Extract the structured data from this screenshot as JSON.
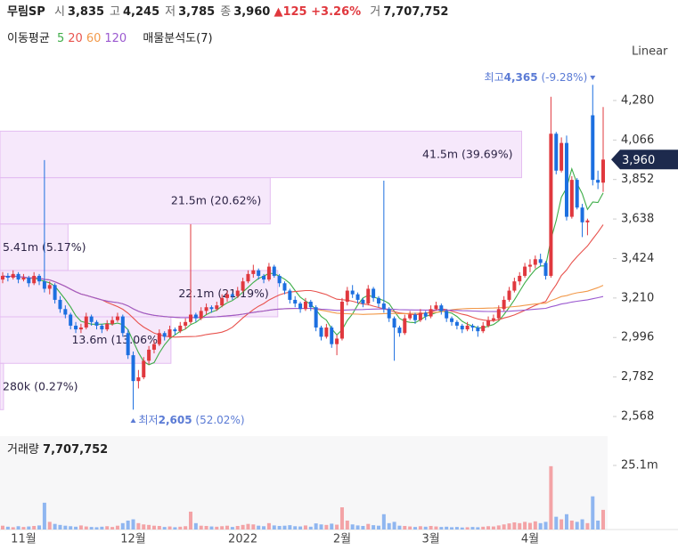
{
  "header": {
    "name": "무림SP",
    "stats": [
      {
        "label": "시",
        "value": "3,835"
      },
      {
        "label": "고",
        "value": "4,245"
      },
      {
        "label": "저",
        "value": "3,785"
      },
      {
        "label": "종",
        "value": "3,960"
      }
    ],
    "change": "125",
    "change_pct": "+3.26%",
    "volume_label": "거",
    "volume": "7,707,752"
  },
  "legend": {
    "title": "이동평균",
    "analysis": "매물분석도(7)"
  },
  "scale_mode": "Linear",
  "chart_data": {
    "type": "candlestick",
    "up_color": "#e0383e",
    "down_color": "#1c6fe0",
    "categories": [
      null,
      null,
      null,
      null,
      "11월",
      null,
      null,
      null,
      null,
      null,
      null,
      null,
      null,
      null,
      null,
      null,
      null,
      null,
      null,
      null,
      null,
      null,
      null,
      null,
      null,
      "12월",
      null,
      null,
      null,
      null,
      null,
      null,
      null,
      null,
      null,
      null,
      null,
      null,
      null,
      null,
      null,
      null,
      null,
      null,
      null,
      null,
      "2022",
      null,
      null,
      null,
      null,
      null,
      null,
      null,
      null,
      null,
      null,
      null,
      null,
      null,
      null,
      null,
      null,
      null,
      null,
      "2월",
      null,
      null,
      null,
      null,
      null,
      null,
      null,
      null,
      null,
      null,
      null,
      null,
      null,
      null,
      null,
      null,
      "3월",
      null,
      null,
      null,
      null,
      null,
      null,
      null,
      null,
      null,
      null,
      null,
      null,
      null,
      null,
      null,
      null,
      null,
      null,
      "4월",
      null,
      null,
      null,
      null,
      null,
      null,
      null,
      null,
      null,
      null,
      null,
      null,
      null
    ],
    "ohlc": [
      [
        3310,
        3350,
        3290,
        3330
      ],
      [
        3330,
        3345,
        3300,
        3320
      ],
      [
        3320,
        3360,
        3310,
        3340
      ],
      [
        3340,
        3350,
        3290,
        3310
      ],
      [
        3310,
        3340,
        3300,
        3320
      ],
      [
        3320,
        3330,
        3270,
        3290
      ],
      [
        3290,
        3350,
        3280,
        3330
      ],
      [
        3330,
        3340,
        3280,
        3300
      ],
      [
        3300,
        3957,
        3240,
        3260
      ],
      [
        3260,
        3300,
        3230,
        3280
      ],
      [
        3280,
        3290,
        3180,
        3200
      ],
      [
        3200,
        3220,
        3130,
        3150
      ],
      [
        3150,
        3170,
        3100,
        3120
      ],
      [
        3120,
        3130,
        3040,
        3060
      ],
      [
        3060,
        3080,
        3020,
        3040
      ],
      [
        3040,
        3070,
        3020,
        3050
      ],
      [
        3050,
        3130,
        3040,
        3110
      ],
      [
        3110,
        3120,
        3060,
        3080
      ],
      [
        3080,
        3090,
        3040,
        3060
      ],
      [
        3060,
        3070,
        3020,
        3040
      ],
      [
        3040,
        3090,
        3030,
        3070
      ],
      [
        3070,
        3110,
        3060,
        3090
      ],
      [
        3090,
        3130,
        3080,
        3110
      ],
      [
        3110,
        3120,
        3000,
        3020
      ],
      [
        3020,
        3040,
        2880,
        2900
      ],
      [
        2900,
        2920,
        2605,
        2760
      ],
      [
        2760,
        2820,
        2720,
        2780
      ],
      [
        2780,
        2890,
        2770,
        2870
      ],
      [
        2870,
        2950,
        2850,
        2930
      ],
      [
        2930,
        2980,
        2910,
        2960
      ],
      [
        2960,
        3040,
        2950,
        3020
      ],
      [
        3020,
        3030,
        2980,
        3000
      ],
      [
        3000,
        3060,
        2990,
        3040
      ],
      [
        3040,
        3050,
        3010,
        3030
      ],
      [
        3030,
        3080,
        3020,
        3060
      ],
      [
        3060,
        3100,
        3040,
        3080
      ],
      [
        3080,
        3610,
        3070,
        3120
      ],
      [
        3120,
        3130,
        3080,
        3100
      ],
      [
        3100,
        3160,
        3090,
        3140
      ],
      [
        3140,
        3180,
        3120,
        3160
      ],
      [
        3160,
        3170,
        3130,
        3150
      ],
      [
        3150,
        3190,
        3140,
        3170
      ],
      [
        3170,
        3230,
        3160,
        3210
      ],
      [
        3210,
        3250,
        3190,
        3230
      ],
      [
        3230,
        3240,
        3200,
        3220
      ],
      [
        3220,
        3270,
        3210,
        3250
      ],
      [
        3250,
        3320,
        3240,
        3300
      ],
      [
        3300,
        3360,
        3290,
        3340
      ],
      [
        3340,
        3390,
        3320,
        3360
      ],
      [
        3360,
        3370,
        3310,
        3330
      ],
      [
        3330,
        3340,
        3290,
        3310
      ],
      [
        3310,
        3400,
        3300,
        3380
      ],
      [
        3380,
        3390,
        3320,
        3330
      ],
      [
        3330,
        3340,
        3270,
        3290
      ],
      [
        3290,
        3300,
        3230,
        3250
      ],
      [
        3250,
        3260,
        3180,
        3200
      ],
      [
        3200,
        3220,
        3160,
        3180
      ],
      [
        3180,
        3190,
        3130,
        3150
      ],
      [
        3150,
        3210,
        3140,
        3190
      ],
      [
        3190,
        3200,
        3140,
        3160
      ],
      [
        3160,
        3170,
        3030,
        3050
      ],
      [
        3050,
        3060,
        2980,
        3000
      ],
      [
        3000,
        3070,
        2990,
        3050
      ],
      [
        3050,
        3060,
        2940,
        2960
      ],
      [
        2960,
        3010,
        2900,
        2990
      ],
      [
        2990,
        3210,
        2980,
        3190
      ],
      [
        3190,
        3270,
        3170,
        3250
      ],
      [
        3250,
        3280,
        3210,
        3230
      ],
      [
        3230,
        3240,
        3180,
        3200
      ],
      [
        3200,
        3210,
        3160,
        3180
      ],
      [
        3180,
        3280,
        3170,
        3260
      ],
      [
        3260,
        3270,
        3190,
        3210
      ],
      [
        3210,
        3220,
        3160,
        3180
      ],
      [
        3180,
        3846,
        3130,
        3150
      ],
      [
        3150,
        3160,
        3080,
        3100
      ],
      [
        3100,
        3110,
        2870,
        3050
      ],
      [
        3050,
        3060,
        3000,
        3020
      ],
      [
        3020,
        3120,
        3010,
        3100
      ],
      [
        3100,
        3140,
        3090,
        3120
      ],
      [
        3120,
        3130,
        3070,
        3090
      ],
      [
        3090,
        3150,
        3080,
        3130
      ],
      [
        3130,
        3140,
        3090,
        3110
      ],
      [
        3110,
        3170,
        3100,
        3150
      ],
      [
        3150,
        3190,
        3140,
        3170
      ],
      [
        3170,
        3180,
        3120,
        3140
      ],
      [
        3140,
        3150,
        3080,
        3100
      ],
      [
        3100,
        3110,
        3060,
        3080
      ],
      [
        3080,
        3090,
        3040,
        3060
      ],
      [
        3060,
        3070,
        3020,
        3040
      ],
      [
        3040,
        3080,
        3030,
        3060
      ],
      [
        3060,
        3070,
        3030,
        3050
      ],
      [
        3050,
        3060,
        3000,
        3030
      ],
      [
        3030,
        3080,
        3020,
        3060
      ],
      [
        3060,
        3110,
        3050,
        3090
      ],
      [
        3090,
        3120,
        3080,
        3100
      ],
      [
        3100,
        3170,
        3090,
        3150
      ],
      [
        3150,
        3220,
        3140,
        3200
      ],
      [
        3200,
        3270,
        3190,
        3250
      ],
      [
        3250,
        3320,
        3240,
        3300
      ],
      [
        3300,
        3350,
        3280,
        3330
      ],
      [
        3330,
        3400,
        3320,
        3380
      ],
      [
        3380,
        3420,
        3350,
        3390
      ],
      [
        3390,
        3440,
        3370,
        3420
      ],
      [
        3420,
        3450,
        3380,
        3400
      ],
      [
        3400,
        3410,
        3310,
        3330
      ],
      [
        3330,
        4300,
        3320,
        4100
      ],
      [
        4100,
        4110,
        3880,
        3900
      ],
      [
        3900,
        4080,
        3890,
        4050
      ],
      [
        4050,
        4090,
        3630,
        3650
      ],
      [
        3650,
        3870,
        3640,
        3850
      ],
      [
        3850,
        3860,
        3690,
        3700
      ],
      [
        3700,
        3720,
        3540,
        3620
      ],
      [
        3620,
        3640,
        3550,
        3630
      ],
      [
        4200,
        4365,
        3820,
        3850
      ],
      [
        3850,
        3900,
        3800,
        3835
      ],
      [
        3835,
        4245,
        3785,
        3960
      ]
    ],
    "ylim": [
      2486,
      4487
    ],
    "yticks": [
      {
        "value": 2568,
        "label": "2,568"
      },
      {
        "value": 2782,
        "label": "2,782"
      },
      {
        "value": 2996,
        "label": "2,996"
      },
      {
        "value": 3210,
        "label": "3,210"
      },
      {
        "value": 3424,
        "label": "3,424"
      },
      {
        "value": 3638,
        "label": "3,638"
      },
      {
        "value": 3852,
        "label": "3,852"
      },
      {
        "value": 4066,
        "label": "4,066"
      },
      {
        "value": 4280,
        "label": "4,280"
      }
    ],
    "moving_averages": [
      {
        "period": 5,
        "color": "#3fae49"
      },
      {
        "period": 20,
        "color": "#e8534e"
      },
      {
        "period": 60,
        "color": "#f2994a"
      },
      {
        "period": 120,
        "color": "#9b59d0"
      }
    ],
    "current": {
      "value": 3960,
      "label": "3,960",
      "color": "#1d2a4d"
    },
    "high_mark": {
      "index": 113,
      "label": "최고",
      "value": 4365,
      "value_label": "4,365",
      "change": "(-9.28%)"
    },
    "low_mark": {
      "index": 25,
      "label": "최저",
      "value": 2605,
      "value_label": "2,605",
      "change": "(52.02%)"
    },
    "profile": {
      "bins": [
        2605,
        2856,
        3108,
        3359,
        3611,
        3862,
        4114
      ],
      "volumes": [
        280000,
        13600000,
        22100000,
        5410000,
        21500000,
        41500000
      ],
      "volume_labels": [
        "280k",
        "13.6m",
        "22.1m",
        "5.41m",
        "21.5m",
        "41.5m"
      ],
      "shares": [
        0.27,
        13.06,
        21.19,
        5.17,
        20.62,
        39.69
      ],
      "share_labels": [
        "(0.27%)",
        "(13.06%)",
        "(21.19%)",
        "(5.17%)",
        "(20.62%)",
        "(39.69%)"
      ],
      "xlim": [
        0,
        48200000
      ]
    },
    "volume_pane": {
      "title": "거래량",
      "title_value": "7,707,752",
      "ylim": [
        0,
        36600000
      ],
      "yticks": [
        {
          "value": 25100000,
          "label": "25.1m"
        }
      ],
      "values": [
        1500000,
        1100000,
        900000,
        1300000,
        1000000,
        1200000,
        1400000,
        1600000,
        10500000,
        3000000,
        2200000,
        1800000,
        1500000,
        1300000,
        1100000,
        1600000,
        1200000,
        1000000,
        900000,
        1100000,
        1300000,
        1000000,
        1500000,
        2500000,
        3500000,
        4000000,
        2500000,
        2000000,
        1800000,
        1500000,
        1400000,
        1000000,
        1200000,
        900000,
        1100000,
        1300000,
        7000000,
        2500000,
        1500000,
        1400000,
        1200000,
        1100000,
        1300000,
        1500000,
        1000000,
        1400000,
        1800000,
        2200000,
        2000000,
        1500000,
        1300000,
        2500000,
        1600000,
        1400000,
        1500000,
        1700000,
        1300000,
        1200000,
        1600000,
        1100000,
        2400000,
        2000000,
        1800000,
        2300000,
        1900000,
        8700000,
        3500000,
        2000000,
        1600000,
        1400000,
        2200000,
        1700000,
        1500000,
        6000000,
        2500000,
        3000000,
        1500000,
        1400000,
        1200000,
        1000000,
        1300000,
        1100000,
        1400000,
        1200000,
        1000000,
        1100000,
        900000,
        1000000,
        800000,
        900000,
        1000000,
        900000,
        1100000,
        1300000,
        1200000,
        1600000,
        2000000,
        2400000,
        2800000,
        2500000,
        3000000,
        2600000,
        3200000,
        2500000,
        3000000,
        24800000,
        5000000,
        4000000,
        6000000,
        3500000,
        3000000,
        4000000,
        2500000,
        13000000,
        3500000,
        7707752
      ]
    }
  }
}
